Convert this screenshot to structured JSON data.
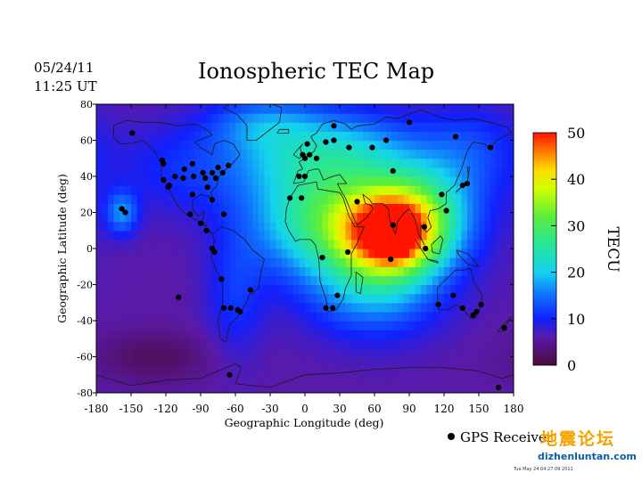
{
  "header": {
    "date": "05/24/11",
    "time": "11:25 UT",
    "title": "Ionospheric TEC Map"
  },
  "legend": {
    "marker_label": "GPS Receiver"
  },
  "watermark": {
    "text": "地震论坛",
    "url": "dizhenluntan.com"
  },
  "footer": {
    "timestamp": "Tue May 24 04:27:09 2011"
  },
  "chart_data": {
    "type": "heatmap",
    "title": "Ionospheric TEC Map",
    "xlabel": "Geographic Longitude (deg)",
    "ylabel": "Geographic Latitude (deg)",
    "xlim": [
      -180,
      180
    ],
    "ylim": [
      -80,
      80
    ],
    "xticks": [
      -180,
      -150,
      -120,
      -90,
      -60,
      -30,
      0,
      30,
      60,
      90,
      120,
      150,
      180
    ],
    "yticks": [
      -80,
      -60,
      -40,
      -20,
      0,
      20,
      40,
      60,
      80
    ],
    "colorbar": {
      "label": "TECU",
      "range": [
        0,
        50
      ],
      "ticks": [
        0,
        10,
        20,
        30,
        40,
        50
      ],
      "stops": [
        {
          "v": 0,
          "color": "#4a0a3a"
        },
        {
          "v": 6,
          "color": "#5a1aa8"
        },
        {
          "v": 10,
          "color": "#1020ff"
        },
        {
          "v": 15,
          "color": "#1070ff"
        },
        {
          "v": 20,
          "color": "#14d2ee"
        },
        {
          "v": 26,
          "color": "#28e696"
        },
        {
          "v": 32,
          "color": "#5aee3c"
        },
        {
          "v": 38,
          "color": "#d2ff00"
        },
        {
          "v": 42,
          "color": "#ffdc00"
        },
        {
          "v": 46,
          "color": "#ff7800"
        },
        {
          "v": 50,
          "color": "#ff1400"
        }
      ]
    },
    "background_tec": 6,
    "tec_regions": [
      {
        "lon": 75,
        "lat": 8,
        "rlon": 40,
        "rlat": 22,
        "tec": 30
      },
      {
        "lon": 55,
        "lat": 12,
        "rlon": 70,
        "rlat": 32,
        "tec": 16
      },
      {
        "lon": 10,
        "lat": 18,
        "rlon": 60,
        "rlat": 30,
        "tec": 12
      },
      {
        "lon": 100,
        "lat": 22,
        "rlon": 45,
        "rlat": 26,
        "tec": 12
      },
      {
        "lon": 78,
        "lat": 5,
        "rlon": 14,
        "rlat": 10,
        "tec": 8
      },
      {
        "lon": 40,
        "lat": 55,
        "rlon": 55,
        "rlat": 22,
        "tec": 10
      },
      {
        "lon": -20,
        "lat": 55,
        "rlon": 50,
        "rlat": 25,
        "tec": 8
      },
      {
        "lon": 60,
        "lat": -25,
        "rlon": 55,
        "rlat": 25,
        "tec": 9
      },
      {
        "lon": -100,
        "lat": 45,
        "rlon": 60,
        "rlat": 25,
        "tec": 5
      },
      {
        "lon": 140,
        "lat": 55,
        "rlon": 45,
        "rlat": 25,
        "tec": 6
      },
      {
        "lon": -158,
        "lat": 20,
        "rlon": 14,
        "rlat": 12,
        "tec": 10
      },
      {
        "lon": -60,
        "lat": -25,
        "rlon": 25,
        "rlat": 35,
        "tec": 5
      },
      {
        "lon": -40,
        "lat": 70,
        "rlon": 45,
        "rlat": 14,
        "tec": 6
      },
      {
        "lon": -130,
        "lat": -60,
        "rlon": 50,
        "rlat": 14,
        "tec": -4
      }
    ],
    "receivers": [
      [
        -149,
        64
      ],
      [
        -122,
        47
      ],
      [
        -123,
        49
      ],
      [
        -122,
        38
      ],
      [
        -118,
        34
      ],
      [
        -117,
        35
      ],
      [
        -112,
        40
      ],
      [
        -105,
        39
      ],
      [
        -104,
        44
      ],
      [
        -97,
        47
      ],
      [
        -97,
        30
      ],
      [
        -96,
        40
      ],
      [
        -88,
        42
      ],
      [
        -86,
        39
      ],
      [
        -84,
        34
      ],
      [
        -80,
        27
      ],
      [
        -80,
        42
      ],
      [
        -77,
        39
      ],
      [
        -75,
        45
      ],
      [
        -71,
        42
      ],
      [
        -66,
        46
      ],
      [
        -70,
        19
      ],
      [
        -158,
        22
      ],
      [
        -155,
        20
      ],
      [
        -99,
        19
      ],
      [
        -90,
        14
      ],
      [
        -85,
        10
      ],
      [
        -80,
        0
      ],
      [
        -78,
        -2
      ],
      [
        -70,
        -33
      ],
      [
        -64,
        -33
      ],
      [
        -58,
        -34
      ],
      [
        -56,
        -35
      ],
      [
        -47,
        -23
      ],
      [
        -72,
        -17
      ],
      [
        -109,
        -27
      ],
      [
        0,
        40
      ],
      [
        -5,
        40
      ],
      [
        0,
        50
      ],
      [
        4,
        52
      ],
      [
        -2,
        52
      ],
      [
        10,
        50
      ],
      [
        18,
        59
      ],
      [
        25,
        60
      ],
      [
        38,
        56
      ],
      [
        58,
        56
      ],
      [
        70,
        60
      ],
      [
        90,
        70
      ],
      [
        130,
        62
      ],
      [
        76,
        43
      ],
      [
        118,
        30
      ],
      [
        140,
        36
      ],
      [
        136,
        35
      ],
      [
        122,
        21
      ],
      [
        103,
        12
      ],
      [
        45,
        26
      ],
      [
        76,
        13
      ],
      [
        74,
        -6
      ],
      [
        104,
        0
      ],
      [
        128,
        -26
      ],
      [
        115,
        -31
      ],
      [
        136,
        -33
      ],
      [
        145,
        -37
      ],
      [
        148,
        -35
      ],
      [
        152,
        -31
      ],
      [
        172,
        -44
      ],
      [
        -13,
        28
      ],
      [
        15,
        -5
      ],
      [
        37,
        -2
      ],
      [
        28,
        -26
      ],
      [
        18,
        -33
      ],
      [
        -3,
        28
      ],
      [
        2,
        58
      ],
      [
        25,
        68
      ],
      [
        160,
        56
      ],
      [
        167,
        -77
      ],
      [
        -65,
        -70
      ],
      [
        24,
        -33
      ]
    ]
  }
}
